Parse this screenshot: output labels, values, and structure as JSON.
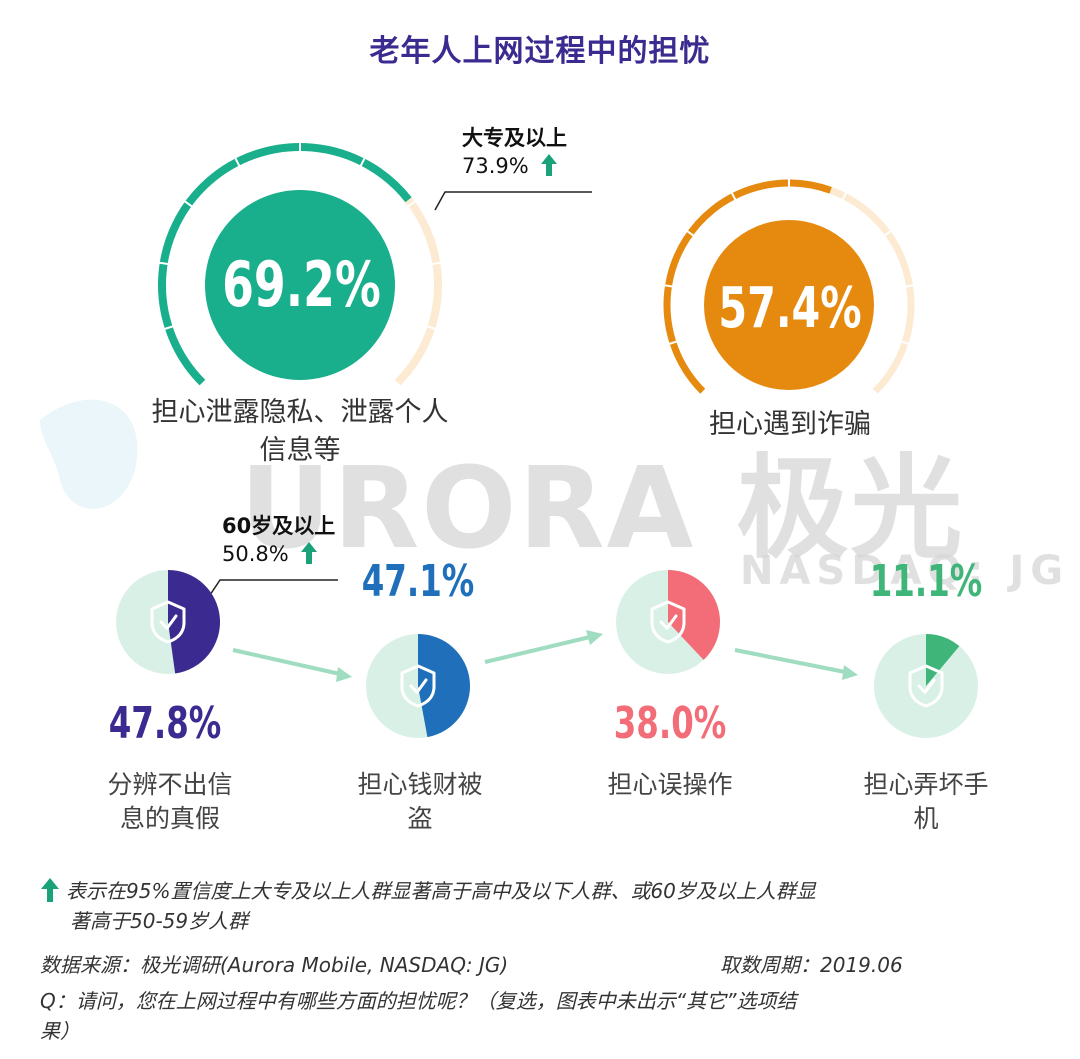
{
  "title": "老年人上网过程中的担忧",
  "watermark": {
    "main": "URORA 极光",
    "sub": "NASDAQ: JG"
  },
  "chart_data": [
    {
      "type": "pie",
      "category": "担心泄露隐私、泄露个人信息等",
      "value": 69.2,
      "value_label": "69.2%",
      "label_lines": [
        "担心泄露隐私、泄露个人",
        "信息等"
      ],
      "color": "#1aaf8c",
      "callout": {
        "group": "大专及以上",
        "value": 73.9,
        "value_label": "73.9%"
      }
    },
    {
      "type": "pie",
      "category": "担心遇到诈骗",
      "value": 57.4,
      "value_label": "57.4%",
      "label_lines": [
        "担心遇到诈骗"
      ],
      "color": "#e58a0f"
    },
    {
      "type": "pie",
      "category": "分辨不出信息的真假",
      "value": 47.8,
      "value_label": "47.8%",
      "label_lines": [
        "分辨不出信",
        "息的真假"
      ],
      "color": "#3b2a8f",
      "callout": {
        "group": "60岁及以上",
        "value": 50.8,
        "value_label": "50.8%"
      }
    },
    {
      "type": "pie",
      "category": "担心钱财被盗",
      "value": 47.1,
      "value_label": "47.1%",
      "label_lines": [
        "担心钱财被",
        "盗"
      ],
      "color": "#1f6fba"
    },
    {
      "type": "pie",
      "category": "担心误操作",
      "value": 38.0,
      "value_label": "38.0%",
      "label_lines": [
        "担心误操作"
      ],
      "color": "#f26d78"
    },
    {
      "type": "pie",
      "category": "担心弄坏手机",
      "value": 11.1,
      "value_label": "11.1%",
      "label_lines": [
        "担心弄坏手",
        "机"
      ],
      "color": "#3fb57a"
    }
  ],
  "footer": {
    "legend_note_lines": [
      "表示在95%置信度上大专及以上人群显著高于高中及以下人群、或60岁及以上人群显",
      "著高于50-59岁人群"
    ],
    "source": "数据来源：极光调研(Aurora Mobile, NASDAQ: JG)",
    "period": "取数周期：2019.06",
    "question_lines": [
      "Q：请问，您在上网过程中有哪些方面的担忧呢？（复选，图表中未出示“其它”选项结",
      "果）"
    ]
  },
  "colors": {
    "title": "#3b2a8f",
    "arrow_up": "#1aa37a",
    "flow_arrow": "#9fdcc0",
    "pie_bg": "#d9f0e6",
    "arc_rest": "#fcebd2"
  }
}
